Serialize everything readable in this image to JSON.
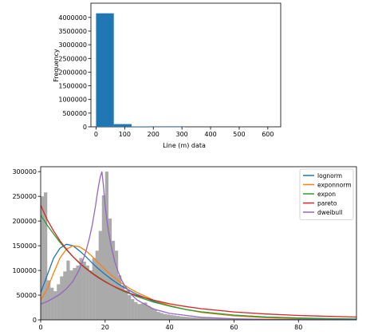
{
  "chart_data": [
    {
      "type": "bar",
      "xlabel": "Line (m) data",
      "ylabel": "Frequency",
      "xlim": [
        -18,
        645
      ],
      "ylim": [
        0,
        4520000
      ],
      "xticks": [
        0,
        100,
        200,
        300,
        400,
        500,
        600
      ],
      "yticks": [
        0,
        500000,
        1000000,
        1500000,
        2000000,
        2500000,
        3000000,
        3500000,
        4000000
      ],
      "bars": [
        {
          "x0": 0,
          "x1": 62,
          "value": 4150000
        },
        {
          "x0": 62,
          "x1": 124,
          "value": 100000
        },
        {
          "x0": 124,
          "x1": 186,
          "value": 15000
        },
        {
          "x0": 186,
          "x1": 248,
          "value": 3000
        },
        {
          "x0": 248,
          "x1": 310,
          "value": 1000
        }
      ],
      "color": "#1f77b4"
    },
    {
      "type": "histogram+line",
      "xlim": [
        0,
        98
      ],
      "ylim": [
        0,
        310000
      ],
      "xticks": [
        0,
        20,
        40,
        60,
        80
      ],
      "yticks": [
        0,
        50000,
        100000,
        150000,
        200000,
        250000,
        300000
      ],
      "histogram": {
        "color": "#aaaaaa",
        "bin_width": 1,
        "values": [
          250000,
          258000,
          80000,
          65000,
          58000,
          72000,
          88000,
          98000,
          120000,
          100000,
          105000,
          110000,
          125000,
          118000,
          110000,
          100000,
          125000,
          140000,
          180000,
          252000,
          300000,
          205000,
          160000,
          140000,
          90000,
          70000,
          60000,
          50000,
          42000,
          36000,
          32000,
          33000,
          35000,
          28000,
          24000,
          20000,
          16000,
          14000,
          12000,
          11000,
          10000,
          9000,
          8000,
          7000,
          6500,
          6000,
          5500,
          5000,
          4500,
          4000,
          3800,
          3500,
          3200,
          3000,
          2800,
          2600,
          2400,
          2200,
          2000,
          1900,
          1800,
          1700,
          1600,
          1500,
          1400,
          1300,
          1200,
          1100,
          1000,
          950,
          900,
          850,
          800,
          750,
          700,
          650,
          600,
          550,
          500,
          480,
          460,
          440,
          420,
          400,
          380,
          360,
          340,
          320,
          300,
          280,
          260,
          240,
          220,
          200,
          190,
          180,
          170,
          160
        ]
      },
      "series": [
        {
          "name": "lognorm",
          "color": "#1f77b4",
          "x": [
            0,
            2,
            4,
            6,
            8,
            10,
            12,
            14,
            16,
            18,
            20,
            22,
            24,
            26,
            28,
            30,
            35,
            40,
            45,
            50,
            60,
            70,
            80,
            90,
            98
          ],
          "y": [
            55000,
            90000,
            125000,
            145000,
            153000,
            150000,
            140000,
            128000,
            115000,
            103000,
            92000,
            82000,
            73000,
            65000,
            58000,
            51000,
            38000,
            28000,
            21000,
            16000,
            9500,
            5800,
            3700,
            2400,
            1700
          ]
        },
        {
          "name": "exponnorm",
          "color": "#ff7f0e",
          "x": [
            0,
            2,
            4,
            6,
            8,
            10,
            12,
            14,
            16,
            18,
            20,
            22,
            24,
            26,
            28,
            30,
            35,
            40,
            45,
            50,
            60,
            70,
            80,
            90,
            98
          ],
          "y": [
            40000,
            62000,
            95000,
            125000,
            143000,
            150000,
            148000,
            140000,
            128000,
            115000,
            102000,
            90000,
            80000,
            70000,
            62000,
            55000,
            40000,
            29000,
            21000,
            15000,
            8000,
            4200,
            2200,
            1200,
            700
          ]
        },
        {
          "name": "expon",
          "color": "#2ca02c",
          "x": [
            0,
            2,
            4,
            6,
            8,
            10,
            12,
            14,
            16,
            18,
            20,
            22,
            24,
            26,
            28,
            30,
            35,
            40,
            45,
            50,
            60,
            70,
            80,
            90,
            98
          ],
          "y": [
            212000,
            192000,
            174000,
            157000,
            142000,
            128000,
            116000,
            105000,
            95000,
            86000,
            78000,
            70000,
            63000,
            57000,
            52000,
            47000,
            36000,
            28000,
            21000,
            16000,
            9500,
            5700,
            3400,
            2000,
            1400
          ]
        },
        {
          "name": "pareto",
          "color": "#d62728",
          "x": [
            0,
            2,
            4,
            6,
            8,
            10,
            12,
            14,
            16,
            18,
            20,
            22,
            24,
            26,
            28,
            30,
            35,
            40,
            45,
            50,
            60,
            70,
            80,
            90,
            98
          ],
          "y": [
            232000,
            203000,
            180000,
            160000,
            143000,
            128000,
            115000,
            104000,
            94000,
            85000,
            77000,
            70000,
            64000,
            58500,
            53500,
            49000,
            40000,
            32500,
            27000,
            22500,
            16000,
            11800,
            8900,
            6900,
            5700
          ]
        },
        {
          "name": "dweibull",
          "color": "#9467bd",
          "x": [
            0,
            2,
            4,
            6,
            8,
            10,
            12,
            13,
            14,
            15,
            16,
            17,
            17.5,
            18,
            18.5,
            19,
            19.5,
            20,
            20.5,
            21,
            22,
            23,
            24,
            25,
            26,
            28,
            30,
            35,
            40,
            50,
            60,
            70,
            80,
            98
          ],
          "y": [
            32000,
            37000,
            44000,
            52000,
            63000,
            78000,
            102000,
            118000,
            138000,
            162000,
            192000,
            230000,
            252000,
            272000,
            290000,
            300000,
            270000,
            232000,
            205000,
            180000,
            145000,
            118000,
            98000,
            82000,
            70000,
            52000,
            40000,
            22000,
            13000,
            5000,
            2200,
            1000,
            500,
            200
          ]
        }
      ],
      "legend": {
        "placement": "top-right"
      }
    }
  ]
}
